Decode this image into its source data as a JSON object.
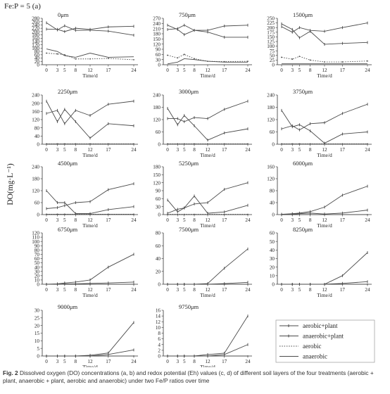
{
  "figure": {
    "heading": "Fe:P = 5 (a)",
    "y_axis_label": "DO(mg·L⁻¹)",
    "x_axis_label": "Time/d",
    "caption_label": "Fig. 2",
    "caption_text": "Dissolved oxygen (DO) concentrations (a, b) and redox potential (Eh) values (c, d) of different soil layers of the four treatments (aerobic + plant, anaerobic + plant, aerobic and anaerobic) under two Fe/P ratios over time"
  },
  "legend": [
    {
      "name": "aerobic+plant",
      "style": "solid-marker"
    },
    {
      "name": "anaerobic+plant",
      "style": "solid-marker"
    },
    {
      "name": "aerobic",
      "style": "dotted"
    },
    {
      "name": "anaerobic",
      "style": "solid"
    }
  ],
  "colors": {
    "line": "#4a4a4a",
    "axis": "#333333"
  },
  "chart_data": [
    {
      "type": "line",
      "title": "0μm",
      "x": [
        0,
        3,
        5,
        8,
        12,
        17,
        24
      ],
      "ylim": [
        0,
        280
      ],
      "yticks": [
        0,
        20,
        40,
        60,
        80,
        100,
        120,
        140,
        160,
        180,
        200,
        220,
        240,
        260,
        280
      ],
      "series": [
        {
          "name": "aerobic+plant",
          "values": [
            215,
            213,
            200,
            220,
            213,
            228,
            232
          ]
        },
        {
          "name": "anaerobic+plant",
          "values": [
            253,
            210,
            235,
            207,
            208,
            203,
            178
          ]
        },
        {
          "name": "aerobic",
          "values": [
            70,
            65,
            60,
            35,
            35,
            38,
            30
          ]
        },
        {
          "name": "anaerobic",
          "values": [
            95,
            80,
            55,
            45,
            70,
            45,
            48
          ]
        }
      ]
    },
    {
      "type": "line",
      "title": "750μm",
      "x": [
        0,
        3,
        5,
        8,
        12,
        17,
        24
      ],
      "ylim": [
        0,
        270
      ],
      "yticks": [
        0,
        30,
        60,
        90,
        120,
        150,
        180,
        210,
        240,
        270
      ],
      "series": [
        {
          "name": "aerobic+plant",
          "values": [
            230,
            205,
            175,
            200,
            200,
            225,
            230
          ]
        },
        {
          "name": "anaerobic+plant",
          "values": [
            205,
            210,
            230,
            200,
            190,
            160,
            160
          ]
        },
        {
          "name": "aerobic",
          "values": [
            55,
            40,
            60,
            35,
            20,
            18,
            20
          ]
        },
        {
          "name": "anaerobic",
          "values": [
            5,
            15,
            35,
            30,
            20,
            15,
            15
          ]
        }
      ]
    },
    {
      "type": "line",
      "title": "1500μm",
      "x": [
        0,
        3,
        5,
        8,
        12,
        17,
        24
      ],
      "ylim": [
        0,
        250
      ],
      "yticks": [
        0,
        25,
        50,
        75,
        100,
        125,
        150,
        175,
        200,
        225,
        250
      ],
      "series": [
        {
          "name": "aerobic+plant",
          "values": [
            205,
            175,
            200,
            185,
            180,
            200,
            225
          ]
        },
        {
          "name": "anaerobic+plant",
          "values": [
            220,
            190,
            145,
            180,
            110,
            115,
            120
          ]
        },
        {
          "name": "aerobic",
          "values": [
            40,
            30,
            45,
            25,
            15,
            15,
            20
          ]
        },
        {
          "name": "anaerobic",
          "values": [
            5,
            5,
            5,
            5,
            5,
            5,
            5
          ]
        }
      ]
    },
    {
      "type": "line",
      "title": "2250μm",
      "x": [
        0,
        3,
        5,
        8,
        12,
        17,
        24
      ],
      "ylim": [
        0,
        240
      ],
      "yticks": [
        0,
        40,
        80,
        120,
        160,
        200,
        240
      ],
      "series": [
        {
          "name": "aerobic+plant",
          "values": [
            150,
            165,
            100,
            165,
            140,
            195,
            210
          ]
        },
        {
          "name": "anaerobic+plant",
          "values": [
            210,
            110,
            170,
            110,
            30,
            100,
            90
          ]
        },
        {
          "name": "aerobic",
          "values": [
            2,
            2,
            2,
            2,
            2,
            2,
            2
          ]
        },
        {
          "name": "anaerobic",
          "values": [
            1,
            1,
            1,
            1,
            1,
            1,
            1
          ]
        }
      ]
    },
    {
      "type": "line",
      "title": "3000μm",
      "x": [
        0,
        3,
        5,
        8,
        12,
        17,
        24
      ],
      "ylim": [
        0,
        240
      ],
      "yticks": [
        0,
        60,
        120,
        180,
        240
      ],
      "series": [
        {
          "name": "aerobic+plant",
          "values": [
            125,
            125,
            110,
            130,
            125,
            170,
            210
          ]
        },
        {
          "name": "anaerobic+plant",
          "values": [
            175,
            95,
            140,
            90,
            20,
            55,
            75
          ]
        },
        {
          "name": "aerobic",
          "values": [
            2,
            2,
            2,
            2,
            2,
            2,
            2
          ]
        },
        {
          "name": "anaerobic",
          "values": [
            1,
            1,
            1,
            1,
            1,
            1,
            1
          ]
        }
      ]
    },
    {
      "type": "line",
      "title": "3750μm",
      "x": [
        0,
        3,
        5,
        8,
        12,
        17,
        24
      ],
      "ylim": [
        0,
        240
      ],
      "yticks": [
        0,
        60,
        120,
        180,
        240
      ],
      "series": [
        {
          "name": "aerobic+plant",
          "values": [
            75,
            90,
            70,
            100,
            105,
            150,
            195
          ]
        },
        {
          "name": "anaerobic+plant",
          "values": [
            165,
            85,
            95,
            65,
            5,
            50,
            60
          ]
        },
        {
          "name": "aerobic",
          "values": [
            2,
            2,
            2,
            2,
            2,
            2,
            2
          ]
        },
        {
          "name": "anaerobic",
          "values": [
            1,
            1,
            1,
            1,
            1,
            1,
            1
          ]
        }
      ]
    },
    {
      "type": "line",
      "title": "4500μm",
      "x": [
        0,
        3,
        5,
        8,
        12,
        17,
        24
      ],
      "ylim": [
        0,
        240
      ],
      "yticks": [
        0,
        60,
        120,
        180,
        240
      ],
      "series": [
        {
          "name": "aerobic+plant",
          "values": [
            30,
            35,
            45,
            60,
            65,
            125,
            155
          ]
        },
        {
          "name": "anaerobic+plant",
          "values": [
            120,
            60,
            60,
            5,
            5,
            25,
            40
          ]
        },
        {
          "name": "aerobic",
          "values": [
            2,
            2,
            2,
            2,
            2,
            2,
            2
          ]
        },
        {
          "name": "anaerobic",
          "values": [
            1,
            1,
            1,
            1,
            1,
            1,
            1
          ]
        }
      ]
    },
    {
      "type": "line",
      "title": "5250μm",
      "x": [
        0,
        3,
        5,
        8,
        12,
        17,
        24
      ],
      "ylim": [
        0,
        180
      ],
      "yticks": [
        0,
        30,
        60,
        90,
        120,
        150,
        180
      ],
      "series": [
        {
          "name": "aerobic+plant",
          "values": [
            5,
            20,
            25,
            40,
            45,
            95,
            120
          ]
        },
        {
          "name": "anaerobic+plant",
          "values": [
            55,
            10,
            25,
            70,
            5,
            10,
            35
          ]
        },
        {
          "name": "aerobic",
          "values": [
            1,
            1,
            1,
            1,
            1,
            1,
            1
          ]
        },
        {
          "name": "anaerobic",
          "values": [
            0,
            0,
            0,
            0,
            0,
            0,
            0
          ]
        }
      ]
    },
    {
      "type": "line",
      "title": "6000μm",
      "x": [
        0,
        3,
        5,
        8,
        12,
        17,
        24
      ],
      "ylim": [
        0,
        160
      ],
      "yticks": [
        0,
        40,
        80,
        120,
        160
      ],
      "series": [
        {
          "name": "aerobic+plant",
          "values": [
            1,
            3,
            5,
            10,
            25,
            65,
            95
          ]
        },
        {
          "name": "anaerobic+plant",
          "values": [
            1,
            1,
            3,
            5,
            2,
            5,
            15
          ]
        },
        {
          "name": "aerobic",
          "values": [
            0,
            0,
            0,
            0,
            0,
            0,
            0
          ]
        },
        {
          "name": "anaerobic",
          "values": [
            0,
            0,
            0,
            0,
            0,
            0,
            0
          ]
        }
      ]
    },
    {
      "type": "line",
      "title": "6750μm",
      "x": [
        0,
        3,
        5,
        8,
        12,
        17,
        24
      ],
      "ylim": [
        0,
        120
      ],
      "yticks": [
        0,
        10,
        20,
        30,
        40,
        50,
        60,
        70,
        80,
        90,
        100,
        110,
        120
      ],
      "series": [
        {
          "name": "aerobic+plant",
          "values": [
            0,
            1,
            3,
            5,
            10,
            40,
            70
          ]
        },
        {
          "name": "anaerobic+plant",
          "values": [
            0,
            0,
            1,
            1,
            2,
            3,
            5
          ]
        },
        {
          "name": "aerobic",
          "values": [
            0,
            0,
            0,
            0,
            0,
            0,
            0
          ]
        },
        {
          "name": "anaerobic",
          "values": [
            0,
            0,
            0,
            0,
            0,
            0,
            0
          ]
        }
      ]
    },
    {
      "type": "line",
      "title": "7500μm",
      "x": [
        0,
        3,
        5,
        8,
        12,
        17,
        24
      ],
      "ylim": [
        0,
        80
      ],
      "yticks": [
        0,
        20,
        40,
        60,
        80
      ],
      "series": [
        {
          "name": "aerobic+plant",
          "values": [
            0,
            0,
            0,
            0,
            1,
            25,
            55
          ]
        },
        {
          "name": "anaerobic+plant",
          "values": [
            0,
            0,
            0,
            0,
            0,
            1,
            3
          ]
        },
        {
          "name": "aerobic",
          "values": [
            0,
            0,
            0,
            0,
            0,
            0,
            0
          ]
        },
        {
          "name": "anaerobic",
          "values": [
            0,
            0,
            0,
            0,
            0,
            0,
            0
          ]
        }
      ]
    },
    {
      "type": "line",
      "title": "8250μm",
      "x": [
        0,
        3,
        5,
        8,
        12,
        17,
        24
      ],
      "ylim": [
        0,
        60
      ],
      "yticks": [
        0,
        10,
        20,
        30,
        40,
        50,
        60
      ],
      "series": [
        {
          "name": "aerobic+plant",
          "values": [
            0,
            0,
            0,
            0,
            0,
            10,
            37
          ]
        },
        {
          "name": "anaerobic+plant",
          "values": [
            0,
            0,
            0,
            0,
            0,
            1,
            3
          ]
        },
        {
          "name": "aerobic",
          "values": [
            0,
            0,
            0,
            0,
            0,
            0,
            0
          ]
        },
        {
          "name": "anaerobic",
          "values": [
            0,
            0,
            0,
            0,
            0,
            0,
            0
          ]
        }
      ]
    },
    {
      "type": "line",
      "title": "9000μm",
      "x": [
        0,
        3,
        5,
        8,
        12,
        17,
        24
      ],
      "ylim": [
        0,
        30
      ],
      "yticks": [
        0,
        5,
        10,
        15,
        20,
        25,
        30
      ],
      "series": [
        {
          "name": "aerobic+plant",
          "values": [
            0,
            0,
            0,
            0,
            0.5,
            2,
            22
          ]
        },
        {
          "name": "anaerobic+plant",
          "values": [
            0,
            0,
            0,
            0,
            0,
            1,
            4
          ]
        },
        {
          "name": "aerobic",
          "values": [
            0,
            0,
            0,
            0,
            0,
            0,
            0
          ]
        },
        {
          "name": "anaerobic",
          "values": [
            0,
            0,
            0,
            0,
            0,
            0,
            0
          ]
        }
      ]
    },
    {
      "type": "line",
      "title": "9750μm",
      "x": [
        0,
        3,
        5,
        8,
        12,
        17,
        24
      ],
      "ylim": [
        0,
        16
      ],
      "yticks": [
        0,
        2,
        4,
        6,
        8,
        10,
        12,
        14,
        16
      ],
      "series": [
        {
          "name": "aerobic+plant",
          "values": [
            0,
            0,
            0,
            0,
            0.5,
            1,
            14
          ]
        },
        {
          "name": "anaerobic+plant",
          "values": [
            0,
            0,
            0,
            0,
            0,
            0.5,
            4
          ]
        },
        {
          "name": "aerobic",
          "values": [
            0,
            0,
            0,
            0,
            0,
            0,
            0
          ]
        },
        {
          "name": "anaerobic",
          "values": [
            0,
            0,
            0,
            0,
            0,
            0,
            0
          ]
        }
      ]
    }
  ]
}
